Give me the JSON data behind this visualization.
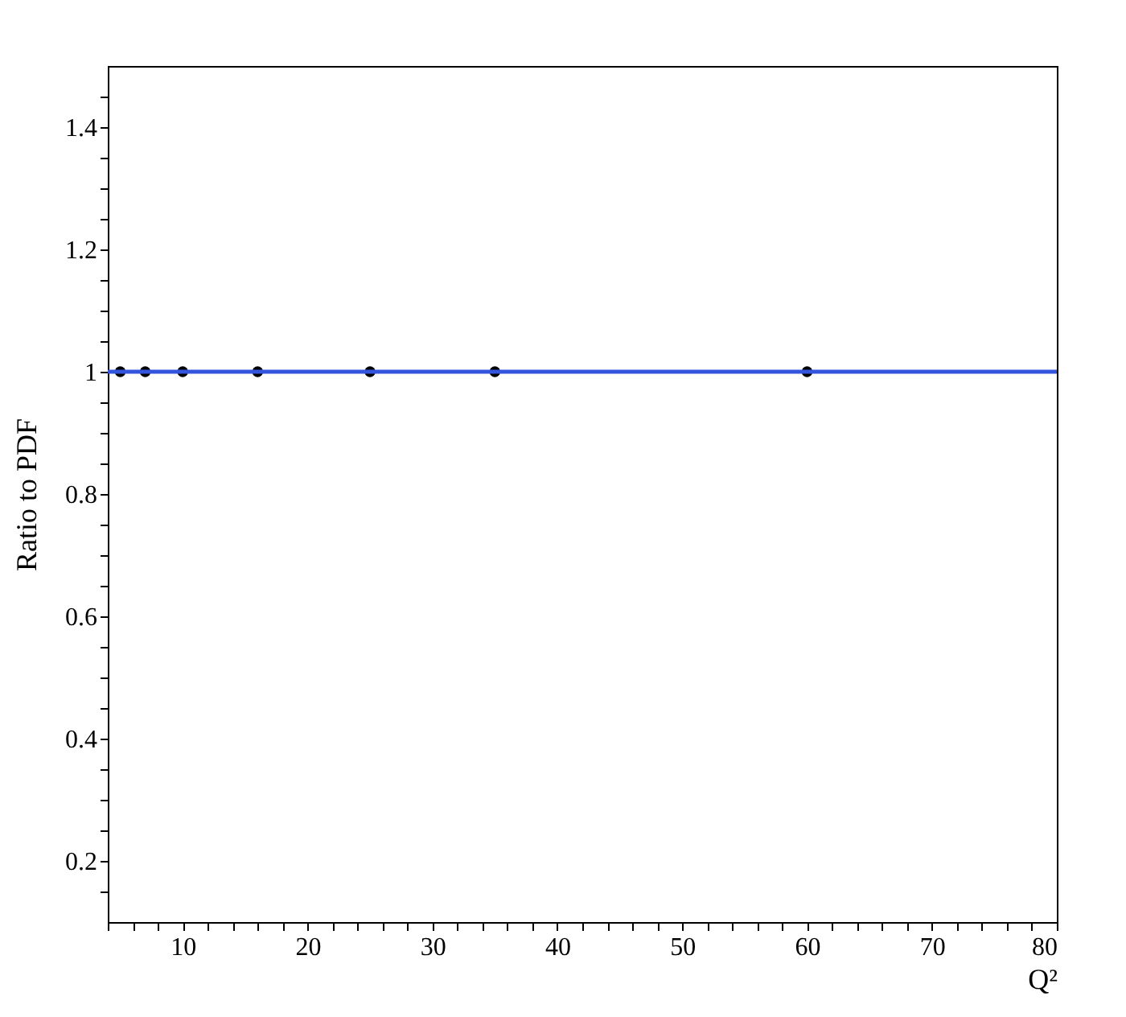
{
  "chart_data": {
    "type": "scatter",
    "xlabel": "Q²",
    "ylabel": "Ratio to PDF",
    "x": [
      5,
      7,
      10,
      16,
      25,
      35,
      60
    ],
    "series": [
      {
        "color": "#000000",
        "values": [
          1,
          1,
          1,
          1,
          1,
          1,
          1
        ]
      }
    ],
    "marker": "circle",
    "grid": false,
    "xlim": [
      4,
      80
    ],
    "ylim": [
      0.1,
      1.5
    ],
    "xticks": [
      {
        "value": 4,
        "label": null
      },
      {
        "value": 6,
        "label": null
      },
      {
        "value": 8,
        "label": null
      },
      10,
      {
        "value": 12,
        "label": null
      },
      {
        "value": 14,
        "label": null
      },
      {
        "value": 16,
        "label": null
      },
      {
        "value": 18,
        "label": null
      },
      20,
      {
        "value": 22,
        "label": null
      },
      {
        "value": 24,
        "label": null
      },
      {
        "value": 26,
        "label": null
      },
      {
        "value": 28,
        "label": null
      },
      30,
      {
        "value": 32,
        "label": null
      },
      {
        "value": 34,
        "label": null
      },
      {
        "value": 36,
        "label": null
      },
      {
        "value": 38,
        "label": null
      },
      40,
      {
        "value": 42,
        "label": null
      },
      {
        "value": 44,
        "label": null
      },
      {
        "value": 46,
        "label": null
      },
      {
        "value": 48,
        "label": null
      },
      50,
      {
        "value": 52,
        "label": null
      },
      {
        "value": 54,
        "label": null
      },
      {
        "value": 56,
        "label": null
      },
      {
        "value": 58,
        "label": null
      },
      60,
      {
        "value": 62,
        "label": null
      },
      {
        "value": 64,
        "label": null
      },
      {
        "value": 66,
        "label": null
      },
      {
        "value": 68,
        "label": null
      },
      70,
      {
        "value": 72,
        "label": null
      },
      {
        "value": 74,
        "label": null
      },
      {
        "value": 76,
        "label": null
      },
      {
        "value": 78,
        "label": null
      },
      80
    ],
    "yticks": [
      {
        "value": 0.15,
        "label": null
      },
      0.2,
      {
        "value": 0.25,
        "label": null
      },
      {
        "value": 0.3,
        "label": null
      },
      {
        "value": 0.35,
        "label": null
      },
      0.4,
      {
        "value": 0.45,
        "label": null
      },
      {
        "value": 0.5,
        "label": null
      },
      {
        "value": 0.55,
        "label": null
      },
      0.6,
      {
        "value": 0.65,
        "label": null
      },
      {
        "value": 0.7,
        "label": null
      },
      {
        "value": 0.75,
        "label": null
      },
      0.8,
      {
        "value": 0.85,
        "label": null
      },
      {
        "value": 0.9,
        "label": null
      },
      {
        "value": 0.95,
        "label": null
      },
      1,
      {
        "value": 1.05,
        "label": null
      },
      {
        "value": 1.1,
        "label": null
      },
      {
        "value": 1.15,
        "label": null
      },
      1.2,
      {
        "value": 1.25,
        "label": null
      },
      {
        "value": 1.3,
        "label": null
      },
      {
        "value": 1.35,
        "label": null
      },
      1.4,
      {
        "value": 1.45,
        "label": null
      }
    ],
    "ref_lines": [
      {
        "axis": "y",
        "value": 1,
        "color": "#3355dd",
        "line_style": "solid"
      }
    ]
  }
}
